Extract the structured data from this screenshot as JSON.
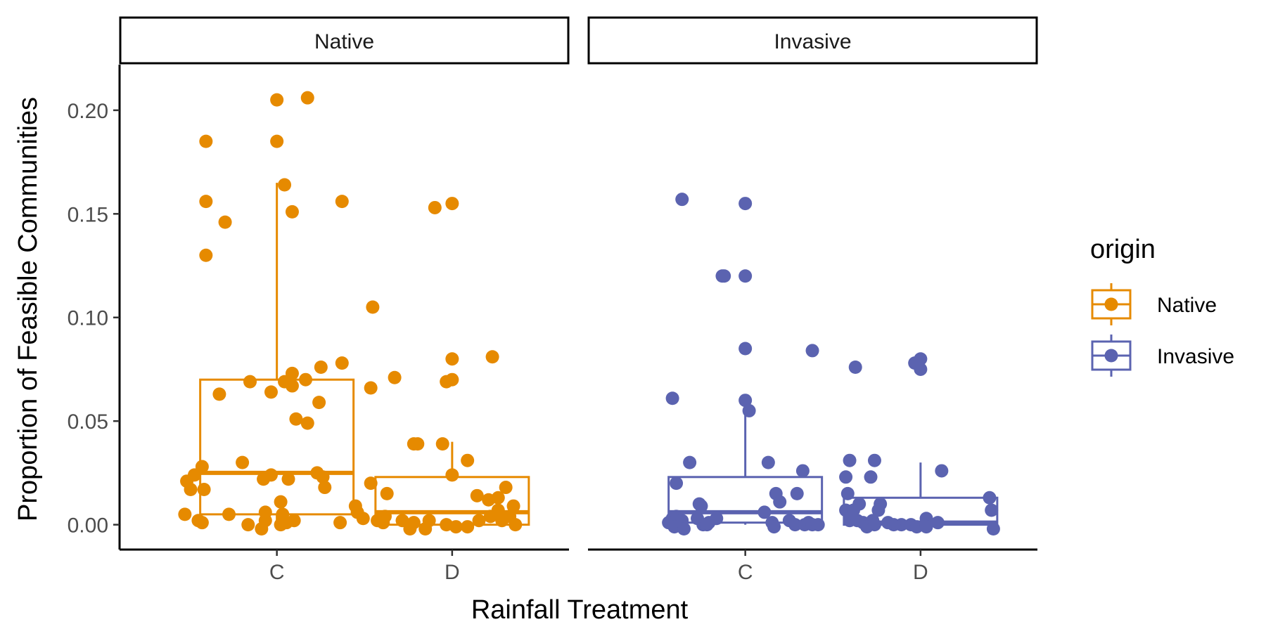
{
  "chart_data": {
    "type": "box+jitter",
    "xlabel": "Rainfall Treatment",
    "ylabel": "Proportion of Feasible Communities",
    "ylim": [
      -0.012,
      0.222
    ],
    "y_ticks": [
      "0.00",
      "0.05",
      "0.10",
      "0.15",
      "0.20"
    ],
    "categories": [
      "C",
      "D"
    ],
    "legend": {
      "title": "origin",
      "position": "right",
      "entries": [
        {
          "label": "Native",
          "color": "#E68A00"
        },
        {
          "label": "Invasive",
          "color": "#5B63B0"
        }
      ]
    },
    "facets": [
      {
        "label": "Native",
        "color": "#E68A00",
        "boxes": [
          {
            "category": "C",
            "q1": 0.005,
            "median": 0.025,
            "q3": 0.07,
            "whisker_low": 0.0,
            "whisker_high": 0.165
          },
          {
            "category": "D",
            "q1": 0.0,
            "median": 0.006,
            "q3": 0.023,
            "whisker_low": 0.0,
            "whisker_high": 0.04
          }
        ],
        "points": [
          {
            "category": "C",
            "x": -0.37,
            "y": 0.185
          },
          {
            "category": "C",
            "x": -0.37,
            "y": 0.156
          },
          {
            "category": "C",
            "x": -0.37,
            "y": 0.13
          },
          {
            "category": "C",
            "x": -0.27,
            "y": 0.146
          },
          {
            "category": "C",
            "x": 0.0,
            "y": 0.205
          },
          {
            "category": "C",
            "x": 0.16,
            "y": 0.206
          },
          {
            "category": "C",
            "x": 0.0,
            "y": 0.185
          },
          {
            "category": "C",
            "x": 0.04,
            "y": 0.164
          },
          {
            "category": "C",
            "x": 0.08,
            "y": 0.151
          },
          {
            "category": "C",
            "x": 0.34,
            "y": 0.156
          },
          {
            "category": "C",
            "x": 0.5,
            "y": 0.105
          },
          {
            "category": "C",
            "x": 0.34,
            "y": 0.078
          },
          {
            "category": "C",
            "x": 0.23,
            "y": 0.076
          },
          {
            "category": "C",
            "x": 0.08,
            "y": 0.073
          },
          {
            "category": "C",
            "x": 0.15,
            "y": 0.07
          },
          {
            "category": "C",
            "x": 0.04,
            "y": 0.069
          },
          {
            "category": "C",
            "x": 0.08,
            "y": 0.067
          },
          {
            "category": "C",
            "x": -0.14,
            "y": 0.069
          },
          {
            "category": "C",
            "x": -0.03,
            "y": 0.064
          },
          {
            "category": "C",
            "x": -0.3,
            "y": 0.063
          },
          {
            "category": "C",
            "x": 0.49,
            "y": 0.066
          },
          {
            "category": "C",
            "x": 0.22,
            "y": 0.059
          },
          {
            "category": "C",
            "x": 0.1,
            "y": 0.051
          },
          {
            "category": "C",
            "x": 0.16,
            "y": 0.049
          },
          {
            "category": "C",
            "x": -0.18,
            "y": 0.03
          },
          {
            "category": "C",
            "x": -0.39,
            "y": 0.028
          },
          {
            "category": "C",
            "x": -0.43,
            "y": 0.024
          },
          {
            "category": "C",
            "x": -0.47,
            "y": 0.021
          },
          {
            "category": "C",
            "x": -0.45,
            "y": 0.017
          },
          {
            "category": "C",
            "x": -0.38,
            "y": 0.017
          },
          {
            "category": "C",
            "x": -0.07,
            "y": 0.022
          },
          {
            "category": "C",
            "x": -0.03,
            "y": 0.024
          },
          {
            "category": "C",
            "x": 0.06,
            "y": 0.022
          },
          {
            "category": "C",
            "x": 0.21,
            "y": 0.025
          },
          {
            "category": "C",
            "x": 0.24,
            "y": 0.023
          },
          {
            "category": "C",
            "x": 0.25,
            "y": 0.018
          },
          {
            "category": "C",
            "x": 0.49,
            "y": 0.02
          },
          {
            "category": "C",
            "x": 0.02,
            "y": 0.011
          },
          {
            "category": "C",
            "x": 0.41,
            "y": 0.009
          },
          {
            "category": "C",
            "x": 0.42,
            "y": 0.006
          },
          {
            "category": "C",
            "x": -0.48,
            "y": 0.005
          },
          {
            "category": "C",
            "x": -0.25,
            "y": 0.005
          },
          {
            "category": "C",
            "x": -0.06,
            "y": 0.006
          },
          {
            "category": "C",
            "x": 0.03,
            "y": 0.005
          },
          {
            "category": "C",
            "x": -0.41,
            "y": 0.002
          },
          {
            "category": "C",
            "x": -0.39,
            "y": 0.001
          },
          {
            "category": "C",
            "x": -0.15,
            "y": 0.0
          },
          {
            "category": "C",
            "x": -0.08,
            "y": -0.002
          },
          {
            "category": "C",
            "x": -0.06,
            "y": 0.002
          },
          {
            "category": "C",
            "x": 0.02,
            "y": 0.0
          },
          {
            "category": "C",
            "x": 0.05,
            "y": 0.001
          },
          {
            "category": "C",
            "x": 0.09,
            "y": 0.002
          },
          {
            "category": "C",
            "x": 0.33,
            "y": 0.001
          },
          {
            "category": "C",
            "x": 0.45,
            "y": 0.003
          },
          {
            "category": "D",
            "x": -0.09,
            "y": 0.153
          },
          {
            "category": "D",
            "x": 0.0,
            "y": 0.155
          },
          {
            "category": "D",
            "x": 0.21,
            "y": 0.081
          },
          {
            "category": "D",
            "x": 0.0,
            "y": 0.08
          },
          {
            "category": "D",
            "x": -0.3,
            "y": 0.071
          },
          {
            "category": "D",
            "x": -0.03,
            "y": 0.069
          },
          {
            "category": "D",
            "x": 0.0,
            "y": 0.07
          },
          {
            "category": "D",
            "x": -0.2,
            "y": 0.039
          },
          {
            "category": "D",
            "x": -0.18,
            "y": 0.039
          },
          {
            "category": "D",
            "x": -0.05,
            "y": 0.039
          },
          {
            "category": "D",
            "x": 0.08,
            "y": 0.031
          },
          {
            "category": "D",
            "x": 0.0,
            "y": 0.024
          },
          {
            "category": "D",
            "x": -0.34,
            "y": 0.015
          },
          {
            "category": "D",
            "x": 0.13,
            "y": 0.014
          },
          {
            "category": "D",
            "x": 0.28,
            "y": 0.018
          },
          {
            "category": "D",
            "x": 0.24,
            "y": 0.013
          },
          {
            "category": "D",
            "x": 0.19,
            "y": 0.012
          },
          {
            "category": "D",
            "x": 0.32,
            "y": 0.009
          },
          {
            "category": "D",
            "x": 0.24,
            "y": 0.007
          },
          {
            "category": "D",
            "x": 0.2,
            "y": 0.004
          },
          {
            "category": "D",
            "x": 0.3,
            "y": 0.004
          },
          {
            "category": "D",
            "x": -0.35,
            "y": 0.004
          },
          {
            "category": "D",
            "x": -0.39,
            "y": 0.002
          },
          {
            "category": "D",
            "x": -0.36,
            "y": 0.001
          },
          {
            "category": "D",
            "x": -0.26,
            "y": 0.002
          },
          {
            "category": "D",
            "x": -0.2,
            "y": 0.001
          },
          {
            "category": "D",
            "x": -0.12,
            "y": 0.002
          },
          {
            "category": "D",
            "x": -0.22,
            "y": -0.002
          },
          {
            "category": "D",
            "x": -0.14,
            "y": -0.002
          },
          {
            "category": "D",
            "x": -0.03,
            "y": 0.0
          },
          {
            "category": "D",
            "x": 0.02,
            "y": -0.001
          },
          {
            "category": "D",
            "x": 0.08,
            "y": -0.001
          },
          {
            "category": "D",
            "x": 0.14,
            "y": 0.002
          },
          {
            "category": "D",
            "x": 0.26,
            "y": 0.002
          },
          {
            "category": "D",
            "x": 0.33,
            "y": 0.0
          }
        ]
      },
      {
        "label": "Invasive",
        "color": "#5B63B0",
        "boxes": [
          {
            "category": "C",
            "q1": 0.001,
            "median": 0.006,
            "q3": 0.023,
            "whisker_low": 0.0,
            "whisker_high": 0.055
          },
          {
            "category": "D",
            "q1": 0.0,
            "median": 0.001,
            "q3": 0.013,
            "whisker_low": 0.0,
            "whisker_high": 0.03
          }
        ],
        "points": [
          {
            "category": "C",
            "x": -0.33,
            "y": 0.157
          },
          {
            "category": "C",
            "x": 0.0,
            "y": 0.155
          },
          {
            "category": "C",
            "x": -0.12,
            "y": 0.12
          },
          {
            "category": "C",
            "x": -0.11,
            "y": 0.12
          },
          {
            "category": "C",
            "x": 0.0,
            "y": 0.12
          },
          {
            "category": "C",
            "x": 0.0,
            "y": 0.085
          },
          {
            "category": "C",
            "x": 0.35,
            "y": 0.084
          },
          {
            "category": "C",
            "x": -0.38,
            "y": 0.061
          },
          {
            "category": "C",
            "x": 0.0,
            "y": 0.06
          },
          {
            "category": "C",
            "x": 0.02,
            "y": 0.055
          },
          {
            "category": "C",
            "x": -0.29,
            "y": 0.03
          },
          {
            "category": "C",
            "x": 0.12,
            "y": 0.03
          },
          {
            "category": "C",
            "x": 0.3,
            "y": 0.026
          },
          {
            "category": "C",
            "x": -0.36,
            "y": 0.02
          },
          {
            "category": "C",
            "x": 0.16,
            "y": 0.015
          },
          {
            "category": "C",
            "x": 0.27,
            "y": 0.015
          },
          {
            "category": "C",
            "x": 0.18,
            "y": 0.011
          },
          {
            "category": "C",
            "x": -0.24,
            "y": 0.01
          },
          {
            "category": "C",
            "x": -0.23,
            "y": 0.009
          },
          {
            "category": "C",
            "x": 0.1,
            "y": 0.006
          },
          {
            "category": "C",
            "x": -0.38,
            "y": 0.003
          },
          {
            "category": "C",
            "x": -0.36,
            "y": 0.004
          },
          {
            "category": "C",
            "x": -0.33,
            "y": 0.002
          },
          {
            "category": "C",
            "x": -0.25,
            "y": 0.003
          },
          {
            "category": "C",
            "x": -0.19,
            "y": 0.001
          },
          {
            "category": "C",
            "x": -0.15,
            "y": 0.003
          },
          {
            "category": "C",
            "x": 0.14,
            "y": 0.001
          },
          {
            "category": "C",
            "x": 0.23,
            "y": 0.002
          },
          {
            "category": "C",
            "x": 0.26,
            "y": 0.0
          },
          {
            "category": "C",
            "x": 0.33,
            "y": 0.001
          },
          {
            "category": "C",
            "x": -0.4,
            "y": 0.001
          },
          {
            "category": "C",
            "x": -0.37,
            "y": -0.001
          },
          {
            "category": "C",
            "x": -0.32,
            "y": -0.002
          },
          {
            "category": "C",
            "x": -0.22,
            "y": 0.0
          },
          {
            "category": "C",
            "x": -0.2,
            "y": 0.0
          },
          {
            "category": "C",
            "x": 0.15,
            "y": -0.001
          },
          {
            "category": "C",
            "x": 0.31,
            "y": 0.0
          },
          {
            "category": "C",
            "x": 0.35,
            "y": 0.0
          },
          {
            "category": "C",
            "x": 0.38,
            "y": 0.0
          },
          {
            "category": "D",
            "x": -0.34,
            "y": 0.076
          },
          {
            "category": "D",
            "x": -0.03,
            "y": 0.078
          },
          {
            "category": "D",
            "x": 0.0,
            "y": 0.08
          },
          {
            "category": "D",
            "x": 0.0,
            "y": 0.075
          },
          {
            "category": "D",
            "x": -0.37,
            "y": 0.031
          },
          {
            "category": "D",
            "x": -0.24,
            "y": 0.031
          },
          {
            "category": "D",
            "x": 0.11,
            "y": 0.026
          },
          {
            "category": "D",
            "x": -0.39,
            "y": 0.023
          },
          {
            "category": "D",
            "x": -0.26,
            "y": 0.023
          },
          {
            "category": "D",
            "x": -0.38,
            "y": 0.015
          },
          {
            "category": "D",
            "x": -0.32,
            "y": 0.01
          },
          {
            "category": "D",
            "x": -0.21,
            "y": 0.01
          },
          {
            "category": "D",
            "x": 0.36,
            "y": 0.013
          },
          {
            "category": "D",
            "x": -0.39,
            "y": 0.007
          },
          {
            "category": "D",
            "x": -0.35,
            "y": 0.007
          },
          {
            "category": "D",
            "x": -0.22,
            "y": 0.007
          },
          {
            "category": "D",
            "x": 0.37,
            "y": 0.007
          },
          {
            "category": "D",
            "x": -0.37,
            "y": 0.002
          },
          {
            "category": "D",
            "x": -0.33,
            "y": 0.002
          },
          {
            "category": "D",
            "x": -0.3,
            "y": 0.001
          },
          {
            "category": "D",
            "x": -0.25,
            "y": 0.002
          },
          {
            "category": "D",
            "x": -0.17,
            "y": 0.001
          },
          {
            "category": "D",
            "x": -0.1,
            "y": 0.0
          },
          {
            "category": "D",
            "x": -0.05,
            "y": 0.0
          },
          {
            "category": "D",
            "x": 0.03,
            "y": 0.003
          },
          {
            "category": "D",
            "x": 0.09,
            "y": 0.001
          },
          {
            "category": "D",
            "x": -0.28,
            "y": -0.001
          },
          {
            "category": "D",
            "x": -0.24,
            "y": 0.0
          },
          {
            "category": "D",
            "x": -0.14,
            "y": 0.0
          },
          {
            "category": "D",
            "x": -0.02,
            "y": -0.001
          },
          {
            "category": "D",
            "x": 0.03,
            "y": -0.001
          },
          {
            "category": "D",
            "x": 0.38,
            "y": -0.002
          }
        ]
      }
    ]
  }
}
